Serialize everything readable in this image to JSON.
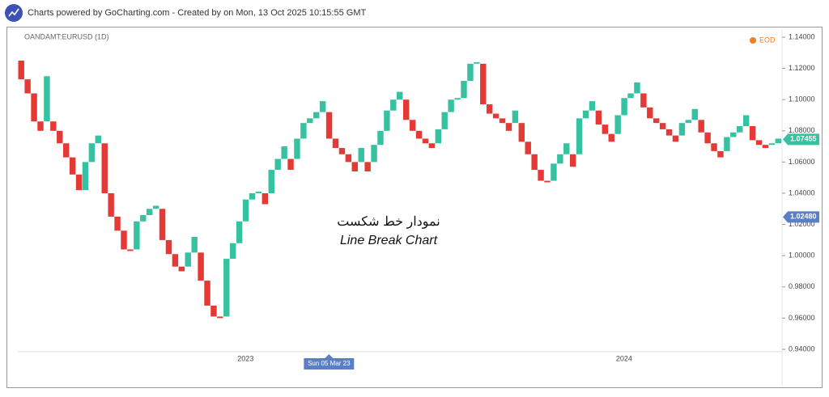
{
  "header": {
    "text": "Charts powered by GoCharting.com - Created by  on Mon, 13 Oct 2025 10:15:55 GMT"
  },
  "chart_data": {
    "type": "line_break",
    "symbol": "OANDAMT:EURUSD (1D)",
    "source": "EOD",
    "annotation": [
      "نمودار خط شکست",
      "Line Break Chart"
    ],
    "up_color": "#36c2a0",
    "down_color": "#e53935",
    "open": [
      1.125,
      1.113,
      1.104,
      1.086,
      1.086,
      1.086,
      1.08,
      1.072,
      1.063,
      1.052,
      1.042,
      1.06,
      1.072,
      1.072,
      1.04,
      1.025,
      1.016,
      1.004,
      1.004,
      1.022,
      1.026,
      1.03,
      1.03,
      1.01,
      1.001,
      0.993,
      0.993,
      1.002,
      1.002,
      0.984,
      0.968,
      0.961,
      0.961,
      0.998,
      1.008,
      1.022,
      1.036,
      1.04,
      1.04,
      1.04,
      1.055,
      1.062,
      1.062,
      1.062,
      1.075,
      1.085,
      1.088,
      1.092,
      1.092,
      1.075,
      1.069,
      1.065,
      1.06,
      1.06,
      1.06,
      1.06,
      1.071,
      1.08,
      1.093,
      1.1,
      1.1,
      1.087,
      1.08,
      1.075,
      1.072,
      1.072,
      1.081,
      1.092,
      1.1,
      1.101,
      1.112,
      1.123,
      1.123,
      1.097,
      1.091,
      1.088,
      1.085,
      1.085,
      1.085,
      1.073,
      1.065,
      1.055,
      1.048,
      1.048,
      1.059,
      1.065,
      1.065,
      1.065,
      1.088,
      1.093,
      1.093,
      1.084,
      1.078,
      1.078,
      1.09,
      1.101,
      1.104,
      1.104,
      1.095,
      1.088,
      1.085,
      1.081,
      1.077,
      1.077,
      1.085,
      1.087,
      1.087,
      1.079,
      1.072,
      1.067,
      1.067,
      1.076,
      1.079,
      1.083,
      1.083,
      1.074,
      1.071,
      1.071,
      1.072
    ],
    "close": [
      1.113,
      1.104,
      1.086,
      1.08,
      1.115,
      1.08,
      1.072,
      1.063,
      1.052,
      1.042,
      1.06,
      1.072,
      1.077,
      1.04,
      1.025,
      1.016,
      1.004,
      1.003,
      1.022,
      1.026,
      1.03,
      1.032,
      1.01,
      1.001,
      0.993,
      0.99,
      1.002,
      1.012,
      0.984,
      0.968,
      0.961,
      0.96,
      0.998,
      1.008,
      1.022,
      1.036,
      1.04,
      1.041,
      1.033,
      1.055,
      1.062,
      1.07,
      1.055,
      1.075,
      1.085,
      1.088,
      1.092,
      1.099,
      1.075,
      1.069,
      1.065,
      1.06,
      1.054,
      1.069,
      1.054,
      1.071,
      1.08,
      1.093,
      1.1,
      1.105,
      1.087,
      1.08,
      1.075,
      1.072,
      1.069,
      1.081,
      1.092,
      1.1,
      1.101,
      1.112,
      1.123,
      1.124,
      1.097,
      1.091,
      1.088,
      1.085,
      1.08,
      1.093,
      1.073,
      1.065,
      1.055,
      1.048,
      1.047,
      1.059,
      1.065,
      1.072,
      1.057,
      1.088,
      1.093,
      1.099,
      1.084,
      1.078,
      1.073,
      1.09,
      1.101,
      1.104,
      1.111,
      1.095,
      1.088,
      1.085,
      1.081,
      1.077,
      1.073,
      1.085,
      1.087,
      1.094,
      1.079,
      1.072,
      1.067,
      1.063,
      1.076,
      1.079,
      1.083,
      1.09,
      1.074,
      1.071,
      1.069,
      1.072,
      1.075
    ],
    "ylim": [
      0.94,
      1.14
    ],
    "yticks": [
      {
        "value": 0.94,
        "label": "0.94000"
      },
      {
        "value": 0.96,
        "label": "0.96000"
      },
      {
        "value": 0.98,
        "label": "0.98000"
      },
      {
        "value": 1.0,
        "label": "1.00000"
      },
      {
        "value": 1.02,
        "label": "1.02000"
      },
      {
        "value": 1.04,
        "label": "1.04000"
      },
      {
        "value": 1.06,
        "label": "1.06000"
      },
      {
        "value": 1.08,
        "label": "1.08000"
      },
      {
        "value": 1.1,
        "label": "1.10000"
      },
      {
        "value": 1.12,
        "label": "1.12000"
      },
      {
        "value": 1.14,
        "label": "1.14000"
      }
    ],
    "xlabels": [
      {
        "index": 35,
        "label": "2023"
      },
      {
        "index": 94,
        "label": "2024"
      }
    ],
    "crosshair_x": {
      "index": 48,
      "label": "Sun 05 Mar 23"
    },
    "last_price": 1.07455,
    "crosshair_price": {
      "value": 1.0248,
      "label": "1.02480"
    }
  }
}
